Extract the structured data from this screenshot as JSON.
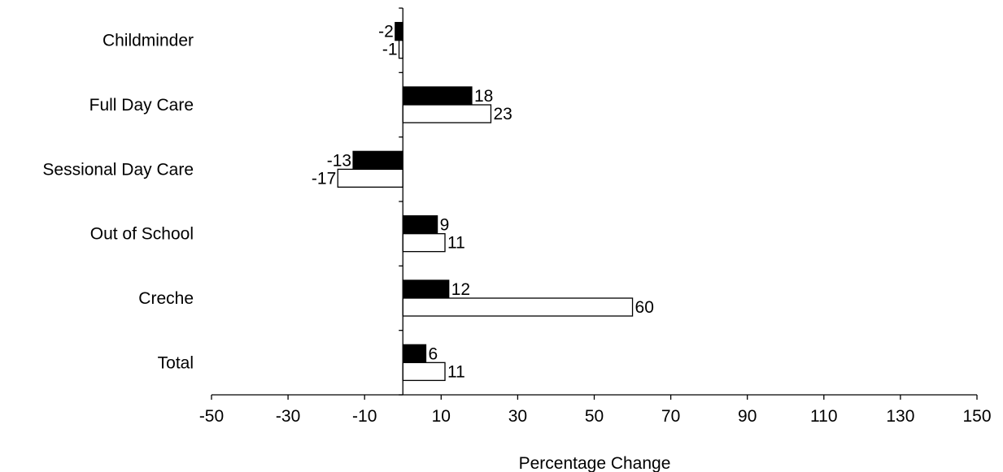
{
  "chart_data": {
    "type": "bar",
    "orientation": "horizontal",
    "categories": [
      "Childminder",
      "Full Day Care",
      "Sessional Day Care",
      "Out of School",
      "Creche",
      "Total"
    ],
    "series": [
      {
        "values": [
          -2,
          18,
          -13,
          9,
          12,
          6
        ],
        "color": "#000000"
      },
      {
        "values": [
          -1,
          23,
          -17,
          11,
          60,
          11
        ],
        "color": "#ffffff"
      }
    ],
    "data_labels": [
      [
        "-2",
        "18",
        "-13",
        "9",
        "12",
        "6"
      ],
      [
        "-1",
        "23",
        "-17",
        "11",
        "60",
        "11"
      ]
    ],
    "xlabel": "Percentage Change",
    "xlim": [
      -50,
      150
    ],
    "xticks": [
      -50,
      -30,
      -10,
      10,
      30,
      50,
      70,
      90,
      110,
      130,
      150
    ],
    "xtick_labels": [
      "-50",
      "-30",
      "-10",
      "10",
      "30",
      "50",
      "70",
      "90",
      "110",
      "130",
      "150"
    ],
    "grid": false,
    "legend": "none"
  }
}
